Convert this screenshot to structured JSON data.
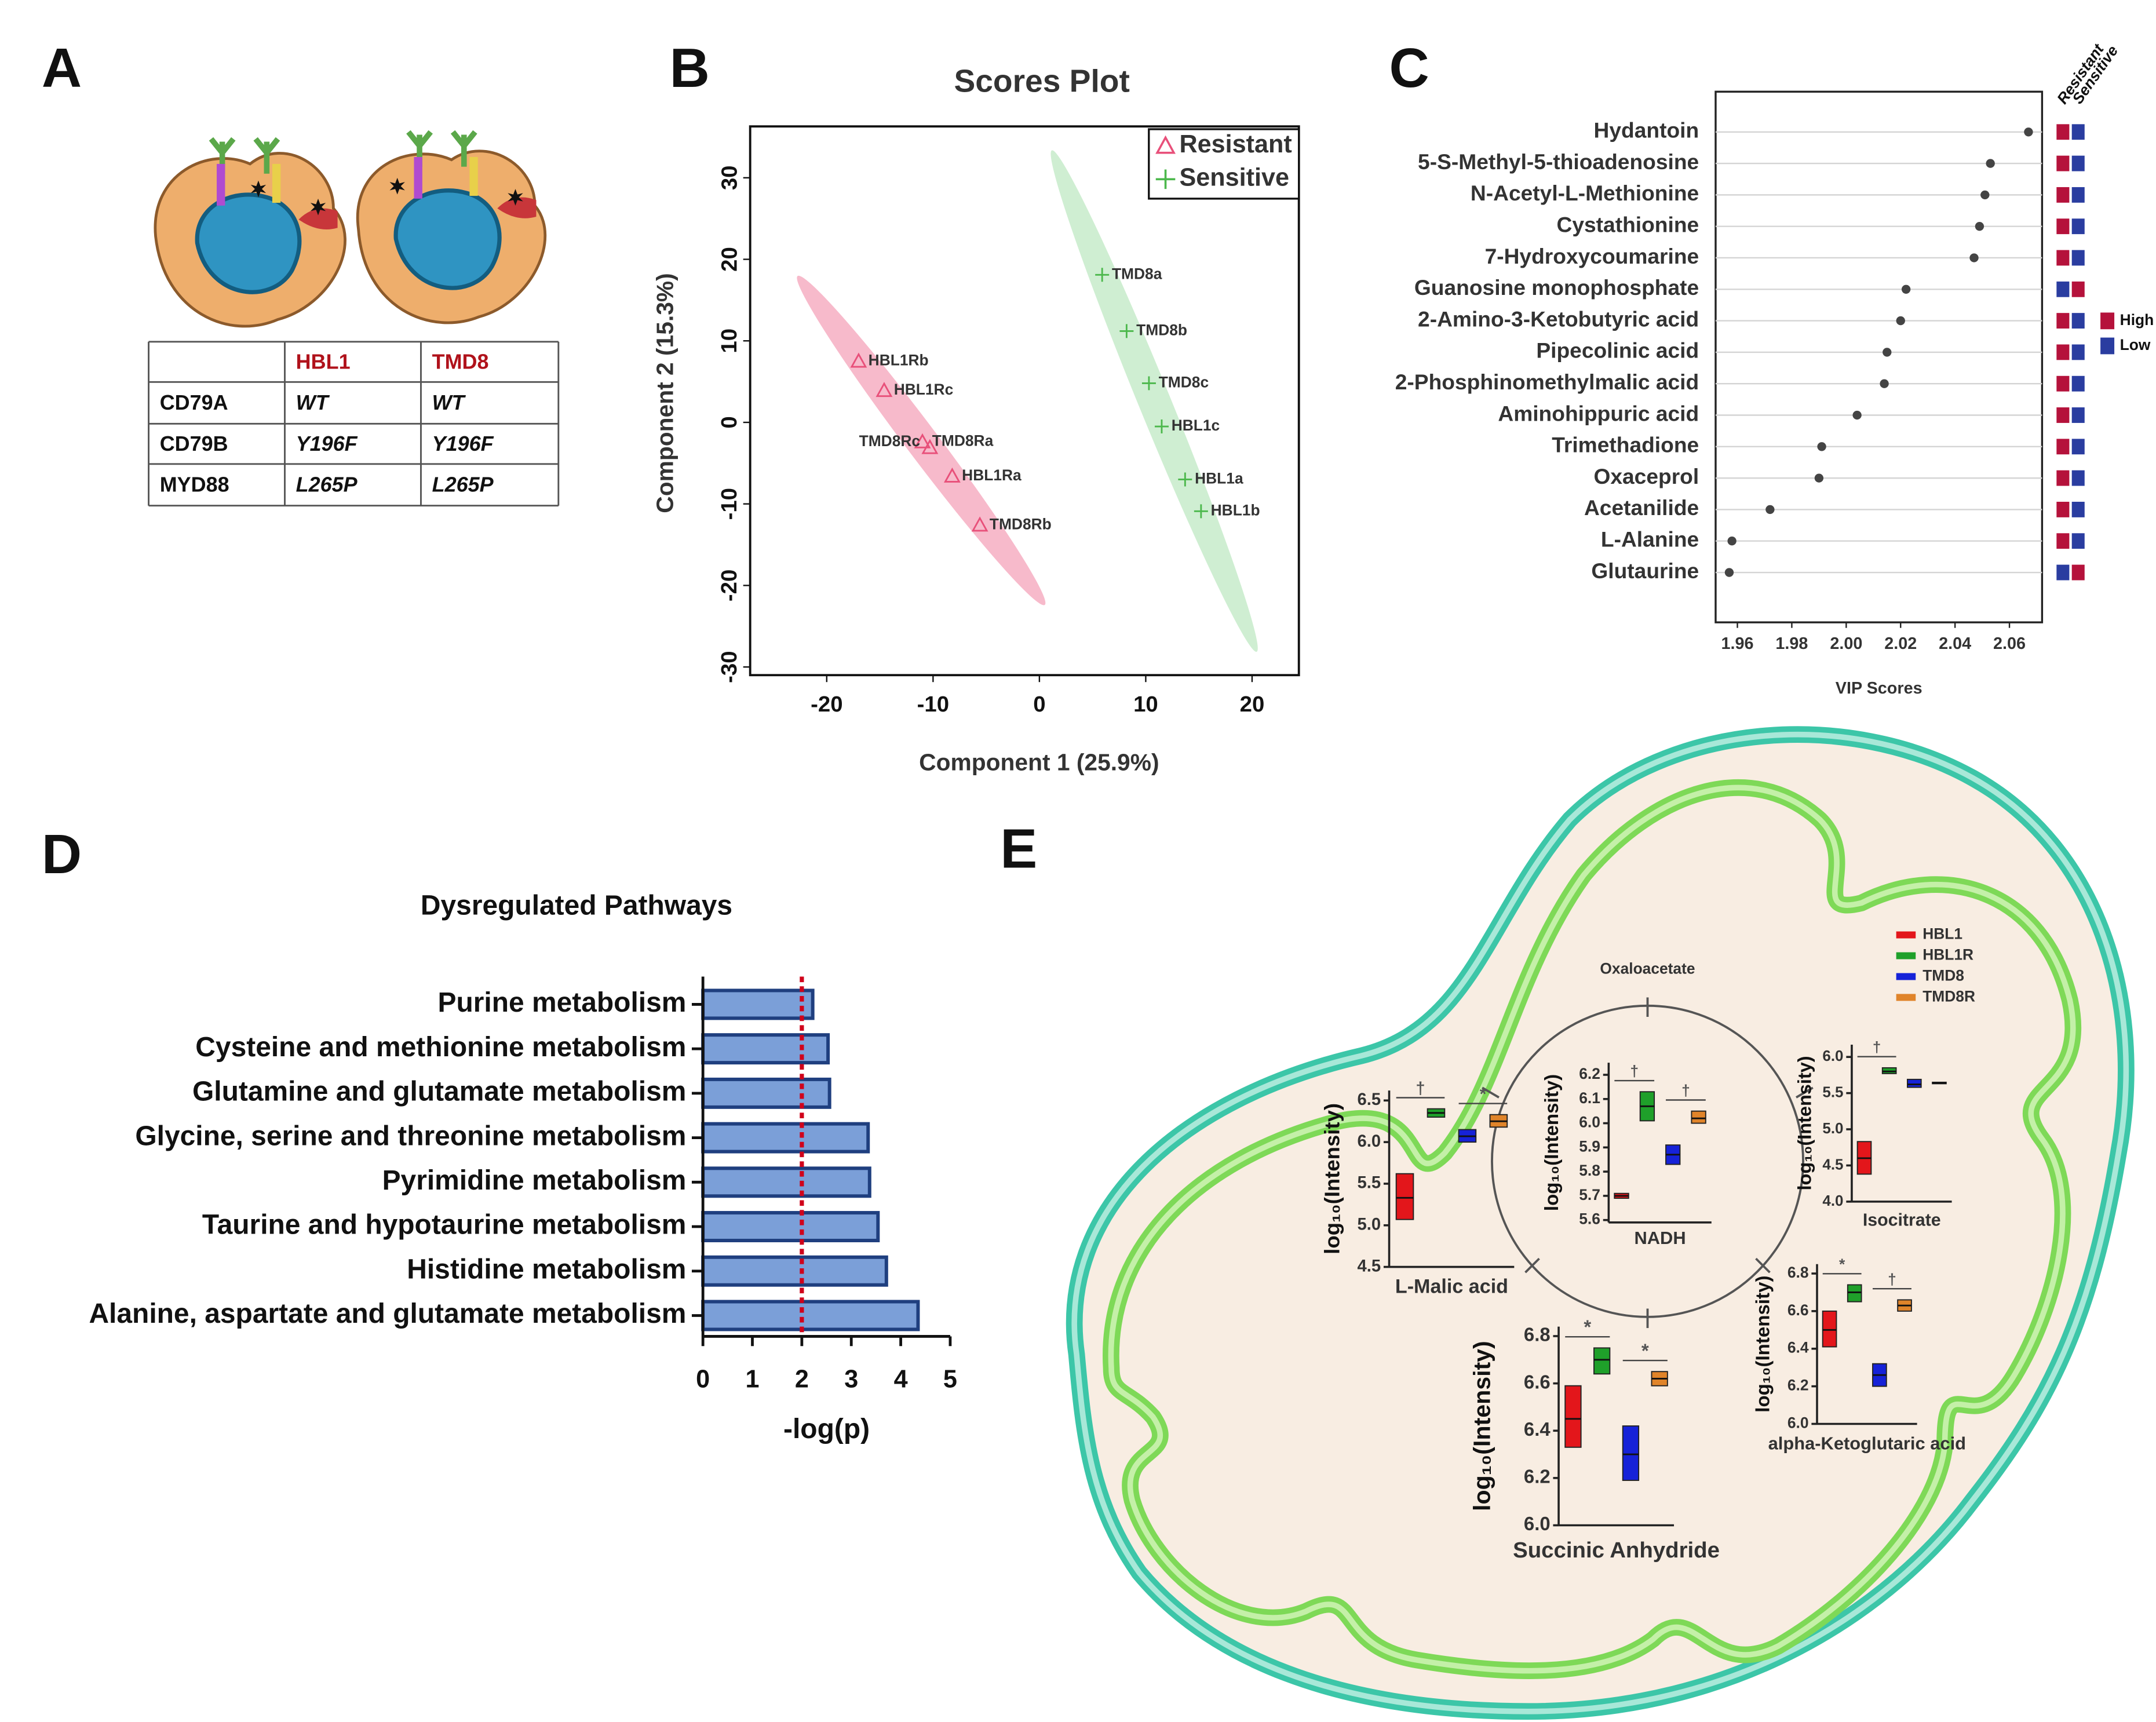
{
  "panels": [
    "A",
    "B",
    "C",
    "D",
    "E"
  ],
  "table": {
    "header": [
      "HBL1",
      "TMD8"
    ],
    "rows": [
      [
        "CD79A",
        "WT",
        "WT"
      ],
      [
        "CD79B",
        "Y196F",
        "Y196F"
      ],
      [
        "MYD88",
        "L265P",
        "L265P"
      ]
    ]
  },
  "chart_data": [
    {
      "type": "scatter",
      "title": "Scores Plot",
      "xlabel": "Component 1 (25.9%)",
      "ylabel": "Component 2 (15.3%)",
      "xlim": [
        -27.2,
        24.4
      ],
      "ylim": [
        -31,
        36.3
      ],
      "xticks": [
        -20,
        -10,
        0,
        10,
        20
      ],
      "yticks": [
        -30,
        -20,
        -10,
        0,
        10,
        20,
        30
      ],
      "legend": "upper right",
      "series": [
        {
          "name": "Resistant",
          "color": "#e8507a",
          "ellipse_color": "#f4a3b9",
          "marker": "triangle",
          "labels": [
            "HBL1Rb",
            "HBL1Rc",
            "TMD8Ra",
            "TMD8Rc",
            "HBL1Ra",
            "TMD8Rb"
          ],
          "x": [
            -17,
            -14.6,
            -11,
            -10.3,
            -8.2,
            -5.6
          ],
          "y": [
            7.5,
            3.9,
            -2.4,
            -3.1,
            -6.6,
            -12.6
          ]
        },
        {
          "name": "Sensitive",
          "color": "#4cb84c",
          "ellipse_color": "#bfe8c3",
          "marker": "plus",
          "labels": [
            "TMD8a",
            "TMD8b",
            "TMD8c",
            "HBL1c",
            "HBL1a",
            "HBL1b"
          ],
          "x": [
            5.9,
            8.2,
            10.3,
            11.5,
            13.7,
            15.2
          ],
          "y": [
            18.1,
            11.2,
            4.8,
            -0.5,
            -7,
            -10.9
          ]
        }
      ]
    },
    {
      "type": "dot",
      "xlabel": "VIP Scores",
      "categories": [
        "Hydantoin",
        "5-S-Methyl-5-thioadenosine",
        "N-Acetyl-L-Methionine",
        "Cystathionine",
        "7-Hydroxycoumarine",
        "Guanosine monophosphate",
        "2-Amino-3-Ketobutyric acid",
        "Pipecolinic acid",
        "2-Phosphinomethylmalic acid",
        "Aminohippuric acid",
        "Trimethadione",
        "Oxaceprol",
        "Acetanilide",
        "L-Alanine",
        "Glutaurine"
      ],
      "values": [
        2.067,
        2.053,
        2.051,
        2.049,
        2.047,
        2.022,
        2.02,
        2.015,
        2.014,
        2.004,
        1.991,
        1.99,
        1.972,
        1.958,
        1.957
      ],
      "color": "#444444",
      "xlim": [
        1.952,
        2.072
      ],
      "xticks": [
        1.96,
        1.98,
        {
          "value": 2,
          "label": "2.00"
        },
        2.02,
        2.04,
        2.06
      ],
      "heat_columns": [
        "Resistant",
        "Sensitive"
      ],
      "heat_levels": [
        {
          "name": "High",
          "color": "#b5123b"
        },
        {
          "name": "Low",
          "color": "#2a3da0"
        }
      ],
      "heat": [
        [
          "High",
          "Low"
        ],
        [
          "High",
          "Low"
        ],
        [
          "High",
          "Low"
        ],
        [
          "High",
          "Low"
        ],
        [
          "High",
          "Low"
        ],
        [
          "Low",
          "High"
        ],
        [
          "High",
          "Low"
        ],
        [
          "High",
          "Low"
        ],
        [
          "High",
          "Low"
        ],
        [
          "High",
          "Low"
        ],
        [
          "High",
          "Low"
        ],
        [
          "High",
          "Low"
        ],
        [
          "High",
          "Low"
        ],
        [
          "High",
          "Low"
        ],
        [
          "Low",
          "High"
        ]
      ]
    },
    {
      "type": "barh",
      "title": "Dysregulated Pathways",
      "xlabel": "-log(p)",
      "categories": [
        "Purine metabolism",
        "Cysteine and methionine metabolism",
        "Glutamine and glutamate metabolism",
        "Glycine, serine and threonine metabolism",
        "Pyrimidine metabolism",
        "Taurine and hypotaurine metabolism",
        "Histidine metabolism",
        "Alanine, aspartate and glutamate metabolism"
      ],
      "values": [
        2.22,
        2.53,
        2.56,
        3.34,
        3.37,
        3.54,
        3.71,
        4.35
      ],
      "color": "#7b9fd8",
      "edge_color": "#1f3f7f",
      "xlim": [
        0,
        5
      ],
      "xticks": [
        0,
        1,
        2,
        3,
        4,
        5
      ],
      "threshold": 2,
      "threshold_color": "#d0021b"
    },
    {
      "type": "box",
      "annotation": "Oxaloacetate",
      "groups": [
        {
          "name": "HBL1",
          "color": "#e3161b"
        },
        {
          "name": "HBL1R",
          "color": "#1fa02a"
        },
        {
          "name": "TMD8",
          "color": "#1622d8"
        },
        {
          "name": "TMD8R",
          "color": "#e0842a"
        }
      ],
      "charts": [
        {
          "title": "L-Malic acid",
          "ylabel": "log₁₀(Intensity)",
          "ylim": [
            4.5,
            6.62
          ],
          "yticks": [
            4.5,
            {
              "value": 5,
              "label": "5.0"
            },
            5.5,
            {
              "value": 6,
              "label": "6.0"
            },
            6.5
          ],
          "low": [
            5.07,
            6.3,
            6.0,
            6.18
          ],
          "median": [
            5.33,
            6.35,
            6.07,
            6.25
          ],
          "high": [
            5.62,
            6.4,
            6.15,
            6.33
          ],
          "pair_marks": [
            "†",
            "*"
          ]
        },
        {
          "title": "NADH",
          "ylabel": "log₁₀(Intensity)",
          "ylim": [
            5.59,
            6.25
          ],
          "yticks": [
            5.6,
            5.7,
            5.8,
            5.9,
            {
              "value": 6,
              "label": "6.0"
            },
            6.1,
            6.2
          ],
          "low": [
            5.69,
            6.01,
            5.83,
            6.0
          ],
          "median": [
            5.7,
            6.07,
            5.87,
            6.02
          ],
          "high": [
            5.71,
            6.13,
            5.91,
            6.05
          ],
          "pair_marks": [
            "†",
            "†"
          ]
        },
        {
          "title": "Isocitrate",
          "ylabel": "log₁₀(Intensity)",
          "ylim": [
            4.0,
            6.17
          ],
          "yticks": [
            {
              "value": 4,
              "label": "4.0"
            },
            4.5,
            {
              "value": 5,
              "label": "5.0"
            },
            5.5,
            {
              "value": 6,
              "label": "6.0"
            }
          ],
          "low": [
            4.38,
            5.77,
            5.58,
            5.63
          ],
          "median": [
            4.6,
            5.8,
            5.62,
            5.64
          ],
          "high": [
            4.83,
            5.85,
            5.69,
            5.65
          ],
          "pair_marks": [
            "†",
            null
          ]
        },
        {
          "title": "Succinic Anhydride",
          "ylabel": "log₁₀(Intensity)",
          "ylim": [
            6.0,
            6.84
          ],
          "yticks": [
            {
              "value": 6,
              "label": "6.0"
            },
            6.2,
            6.4,
            6.6,
            6.8
          ],
          "low": [
            6.33,
            6.64,
            6.19,
            6.59
          ],
          "median": [
            6.45,
            6.7,
            6.3,
            6.62
          ],
          "high": [
            6.59,
            6.75,
            6.42,
            6.65
          ],
          "pair_marks": [
            "*",
            "*"
          ]
        },
        {
          "title": "alpha-Ketoglutaric acid",
          "ylabel": "log₁₀(Intensity)",
          "ylim": [
            6.0,
            6.85
          ],
          "yticks": [
            {
              "value": 6,
              "label": "6.0"
            },
            6.2,
            6.4,
            6.6,
            6.8
          ],
          "low": [
            6.41,
            6.65,
            6.2,
            6.6
          ],
          "median": [
            6.5,
            6.7,
            6.26,
            6.63
          ],
          "high": [
            6.6,
            6.74,
            6.32,
            6.66
          ],
          "pair_marks": [
            "*",
            "†"
          ]
        }
      ]
    }
  ]
}
